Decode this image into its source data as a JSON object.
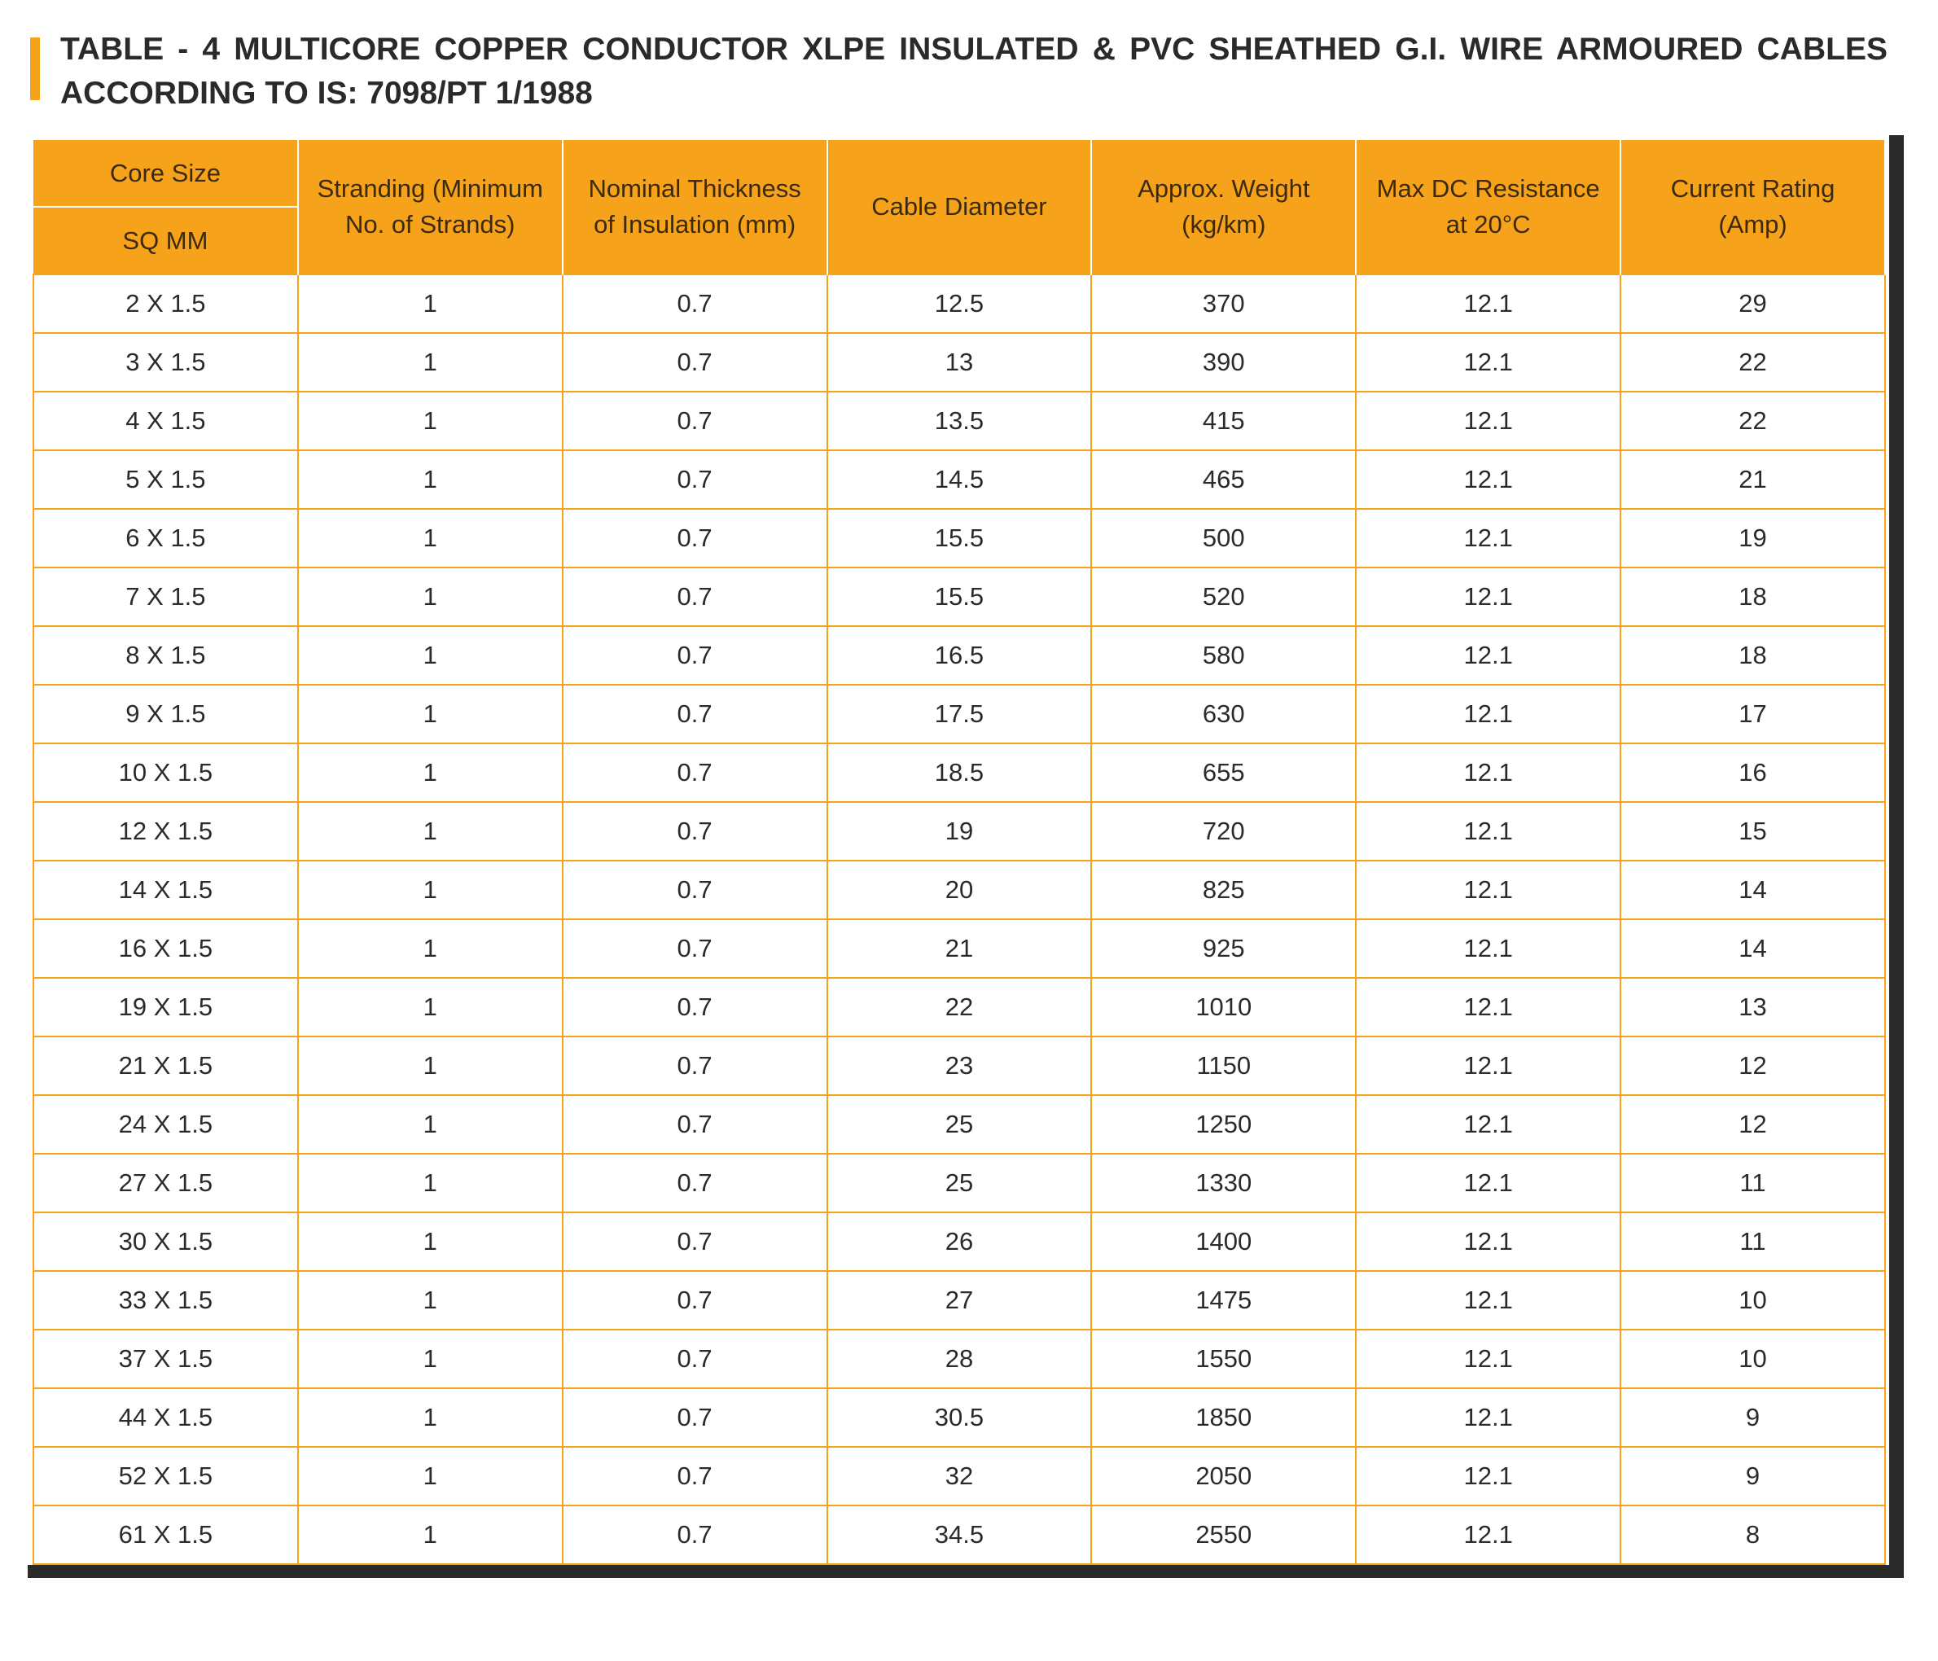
{
  "header": {
    "title_lines": [
      "TABLE - 4 MULTICORE COPPER CONDUCTOR XLPE INSULATED & PVC SHEATHED G.I. WIRE ARMOURED CABLES",
      "ACCORDING TO IS: 7098/PT 1/1988"
    ]
  },
  "table": {
    "core_size_header": [
      "Core Size",
      "SQ MM"
    ],
    "headers": [
      [
        "Stranding (Minimum",
        "No. of Strands)"
      ],
      [
        "Nominal Thickness",
        "of Insulation (mm)"
      ],
      [
        "Cable Diameter"
      ],
      [
        "Approx. Weight",
        "(kg/km)"
      ],
      [
        "Max DC Resistance",
        "at 20°C"
      ],
      [
        "Current Rating",
        "(Amp)"
      ]
    ],
    "rows": [
      [
        "2 X 1.5",
        "1",
        "0.7",
        "12.5",
        "370",
        "12.1",
        "29"
      ],
      [
        "3 X 1.5",
        "1",
        "0.7",
        "13",
        "390",
        "12.1",
        "22"
      ],
      [
        "4 X 1.5",
        "1",
        "0.7",
        "13.5",
        "415",
        "12.1",
        "22"
      ],
      [
        "5 X 1.5",
        "1",
        "0.7",
        "14.5",
        "465",
        "12.1",
        "21"
      ],
      [
        "6 X 1.5",
        "1",
        "0.7",
        "15.5",
        "500",
        "12.1",
        "19"
      ],
      [
        "7 X 1.5",
        "1",
        "0.7",
        "15.5",
        "520",
        "12.1",
        "18"
      ],
      [
        "8 X 1.5",
        "1",
        "0.7",
        "16.5",
        "580",
        "12.1",
        "18"
      ],
      [
        "9 X 1.5",
        "1",
        "0.7",
        "17.5",
        "630",
        "12.1",
        "17"
      ],
      [
        "10 X 1.5",
        "1",
        "0.7",
        "18.5",
        "655",
        "12.1",
        "16"
      ],
      [
        "12 X 1.5",
        "1",
        "0.7",
        "19",
        "720",
        "12.1",
        "15"
      ],
      [
        "14 X 1.5",
        "1",
        "0.7",
        "20",
        "825",
        "12.1",
        "14"
      ],
      [
        "16 X 1.5",
        "1",
        "0.7",
        "21",
        "925",
        "12.1",
        "14"
      ],
      [
        "19 X 1.5",
        "1",
        "0.7",
        "22",
        "1010",
        "12.1",
        "13"
      ],
      [
        "21 X 1.5",
        "1",
        "0.7",
        "23",
        "1150",
        "12.1",
        "12"
      ],
      [
        "24 X 1.5",
        "1",
        "0.7",
        "25",
        "1250",
        "12.1",
        "12"
      ],
      [
        "27 X 1.5",
        "1",
        "0.7",
        "25",
        "1330",
        "12.1",
        "11"
      ],
      [
        "30 X 1.5",
        "1",
        "0.7",
        "26",
        "1400",
        "12.1",
        "11"
      ],
      [
        "33 X 1.5",
        "1",
        "0.7",
        "27",
        "1475",
        "12.1",
        "10"
      ],
      [
        "37 X 1.5",
        "1",
        "0.7",
        "28",
        "1550",
        "12.1",
        "10"
      ],
      [
        "44 X 1.5",
        "1",
        "0.7",
        "30.5",
        "1850",
        "12.1",
        "9"
      ],
      [
        "52 X 1.5",
        "1",
        "0.7",
        "32",
        "2050",
        "12.1",
        "9"
      ],
      [
        "61 X 1.5",
        "1",
        "0.7",
        "34.5",
        "2550",
        "12.1",
        "8"
      ]
    ]
  }
}
